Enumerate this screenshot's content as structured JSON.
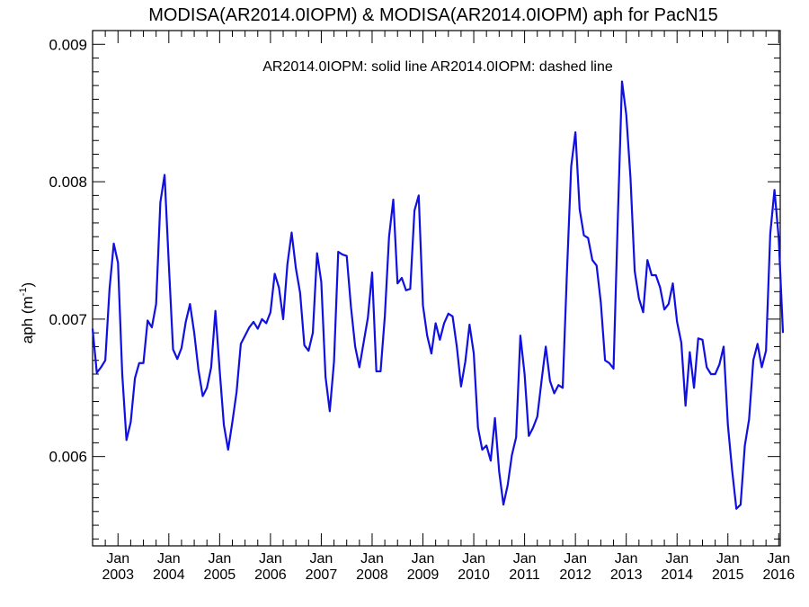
{
  "chart_data": {
    "type": "line",
    "title": "MODISA(AR2014.0IOPM) & MODISA(AR2014.0IOPM)  aph for PacN15",
    "annotation": "AR2014.0IOPM: solid line   AR2014.0IOPM: dashed line",
    "ylabel": "aph (m",
    "ylabel_sup": "-1",
    "ylabel_close": ")",
    "xlabel": "",
    "ylim": [
      0.00535,
      0.0091
    ],
    "xlim": [
      2002.5,
      2016.03
    ],
    "grid": false,
    "line_color": "#1010e0",
    "y_ticks": [
      {
        "value": 0.006,
        "label": "0.006"
      },
      {
        "value": 0.007,
        "label": "0.007"
      },
      {
        "value": 0.008,
        "label": "0.008"
      },
      {
        "value": 0.009,
        "label": "0.009"
      }
    ],
    "x_ticks": [
      {
        "value": 2003,
        "month": "Jan",
        "year": "2003"
      },
      {
        "value": 2004,
        "month": "Jan",
        "year": "2004"
      },
      {
        "value": 2005,
        "month": "Jan",
        "year": "2005"
      },
      {
        "value": 2006,
        "month": "Jan",
        "year": "2006"
      },
      {
        "value": 2007,
        "month": "Jan",
        "year": "2007"
      },
      {
        "value": 2008,
        "month": "Jan",
        "year": "2008"
      },
      {
        "value": 2009,
        "month": "Jan",
        "year": "2009"
      },
      {
        "value": 2010,
        "month": "Jan",
        "year": "2010"
      },
      {
        "value": 2011,
        "month": "Jan",
        "year": "2011"
      },
      {
        "value": 2012,
        "month": "Jan",
        "year": "2012"
      },
      {
        "value": 2013,
        "month": "Jan",
        "year": "2013"
      },
      {
        "value": 2014,
        "month": "Jan",
        "year": "2014"
      },
      {
        "value": 2015,
        "month": "Jan",
        "year": "2015"
      },
      {
        "value": 2016,
        "month": "Jan",
        "year": "2016"
      }
    ],
    "series": [
      {
        "start_year": 2002,
        "start_month": 7,
        "values": [
          0.00693,
          0.00661,
          0.00665,
          0.0067,
          0.00722,
          0.00755,
          0.00741,
          0.0066,
          0.00612,
          0.00625,
          0.00657,
          0.00668,
          0.00668,
          0.00699,
          0.00694,
          0.00711,
          0.00785,
          0.00805,
          0.0074,
          0.00678,
          0.00671,
          0.00679,
          0.00698,
          0.00711,
          0.0069,
          0.00663,
          0.00644,
          0.0065,
          0.00665,
          0.00706,
          0.00663,
          0.00623,
          0.00605,
          0.00625,
          0.00647,
          0.00682,
          0.00688,
          0.00694,
          0.00698,
          0.00693,
          0.007,
          0.00697,
          0.00705,
          0.00733,
          0.00723,
          0.007,
          0.0074,
          0.00763,
          0.00737,
          0.00719,
          0.00681,
          0.00677,
          0.0069,
          0.00748,
          0.00727,
          0.00658,
          0.00633,
          0.00669,
          0.00749,
          0.00747,
          0.00746,
          0.00709,
          0.0068,
          0.00665,
          0.00683,
          0.00701,
          0.00734,
          0.00662,
          0.00662,
          0.00702,
          0.0076,
          0.00787,
          0.00726,
          0.0073,
          0.00721,
          0.00722,
          0.00779,
          0.0079,
          0.0071,
          0.00688,
          0.00675,
          0.00697,
          0.00685,
          0.00697,
          0.00704,
          0.00702,
          0.0068,
          0.00651,
          0.00669,
          0.00696,
          0.00675,
          0.00621,
          0.00605,
          0.00608,
          0.00597,
          0.00628,
          0.00589,
          0.00565,
          0.00579,
          0.00601,
          0.00614,
          0.00688,
          0.0066,
          0.00615,
          0.00621,
          0.00629,
          0.00655,
          0.0068,
          0.00655,
          0.00646,
          0.00652,
          0.0065,
          0.00734,
          0.00811,
          0.00836,
          0.0078,
          0.00761,
          0.00759,
          0.00743,
          0.00739,
          0.00712,
          0.0067,
          0.00668,
          0.00664,
          0.00772,
          0.00873,
          0.00849,
          0.00803,
          0.00735,
          0.00715,
          0.00705,
          0.00743,
          0.00732,
          0.00732,
          0.00723,
          0.00707,
          0.00711,
          0.00726,
          0.00698,
          0.00683,
          0.00637,
          0.00676,
          0.0065,
          0.00686,
          0.00685,
          0.00665,
          0.0066,
          0.0066,
          0.00667,
          0.0068,
          0.00623,
          0.0059,
          0.00562,
          0.00565,
          0.00608,
          0.00627,
          0.0067,
          0.00682,
          0.00665,
          0.00677,
          0.00762,
          0.00794,
          0.00759,
          0.0069
        ]
      }
    ]
  }
}
